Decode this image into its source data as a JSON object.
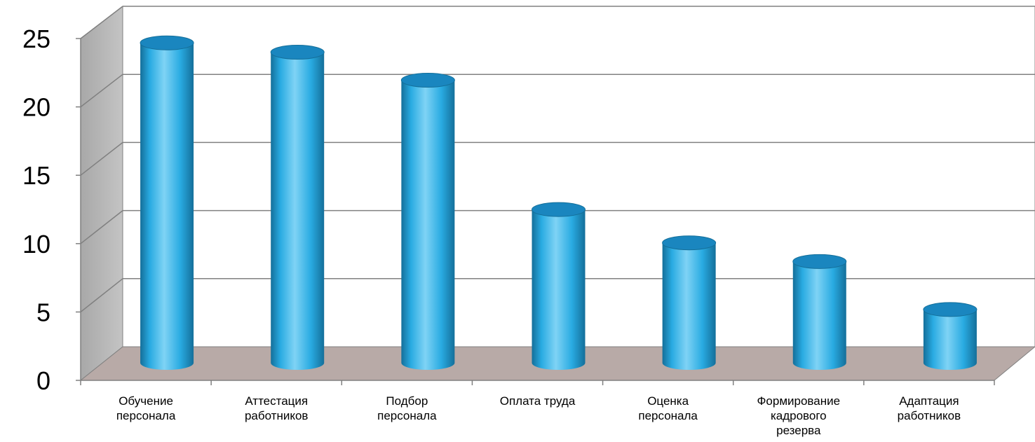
{
  "chart_data": {
    "type": "bar",
    "style": "3d-cylinder",
    "categories": [
      "Обучение персонала",
      "Аттестация работников",
      "Подбор персонала",
      "Оплата труда",
      "Оценка персонала",
      "Формирование кадрового резерва",
      "Адаптация работников"
    ],
    "values": [
      24,
      23.3,
      21.2,
      11.5,
      9,
      7.6,
      4
    ],
    "ylim": [
      0,
      25
    ],
    "yticks": [
      "0",
      "5",
      "10",
      "15",
      "20",
      "25"
    ],
    "title": "",
    "xlabel": "",
    "ylabel": "",
    "grid": true,
    "legend": "none",
    "colors": {
      "bar": "#29abe2",
      "bar_light": "#7fd3f5",
      "bar_dark": "#146f9a",
      "bar_top": "#1a86bf",
      "floor": "#b8aaa7",
      "wall": "#ffffff",
      "side_wall": "#b0b0b0",
      "grid": "#808080"
    }
  }
}
